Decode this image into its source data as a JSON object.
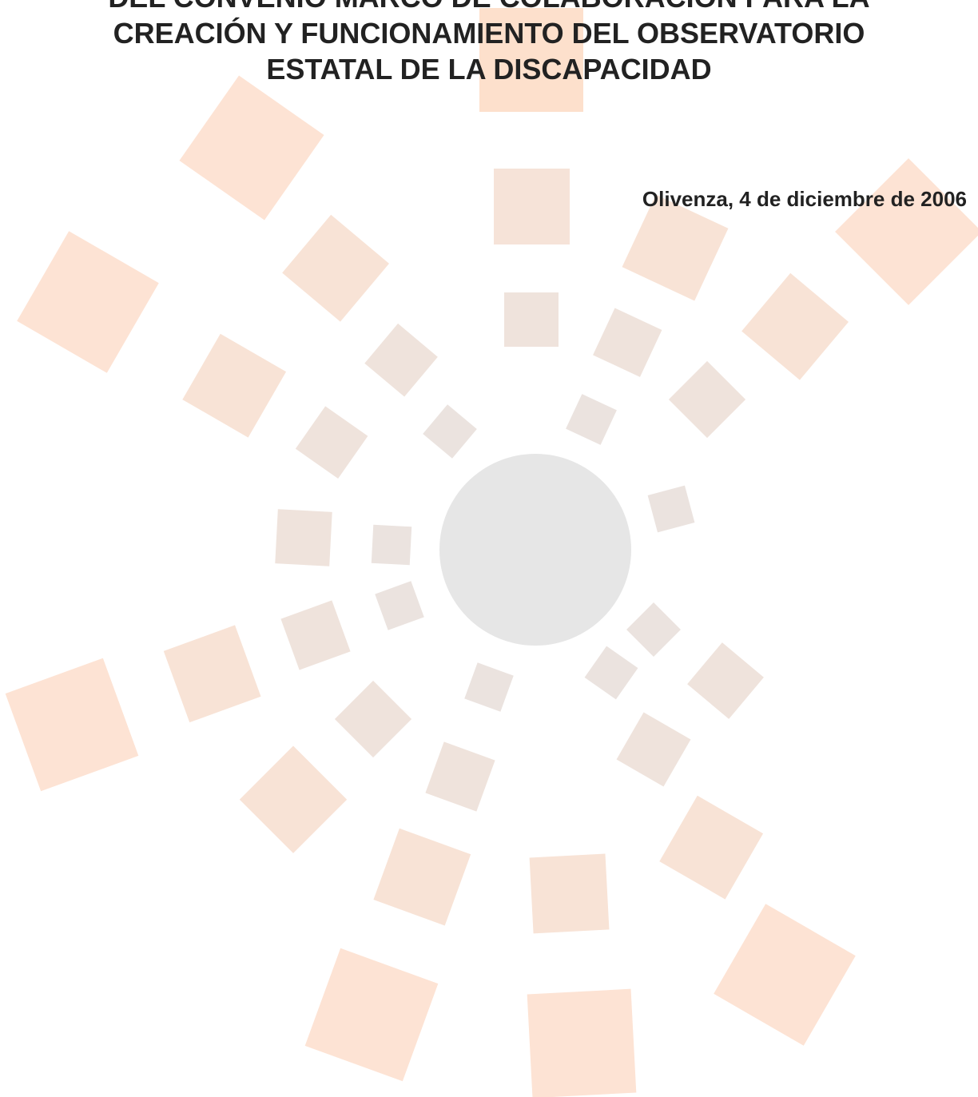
{
  "header": {
    "title_lines": [
      "DEL CONVENIO MARCO DE COLABORACIÓN PARA LA",
      "CREACIÓN Y FUNCIONAMIENTO DEL OBSERVATORIO",
      "ESTATAL DE LA DISCAPACIDAD"
    ]
  },
  "date": "Olivenza, 4 de diciembre de 2006"
}
